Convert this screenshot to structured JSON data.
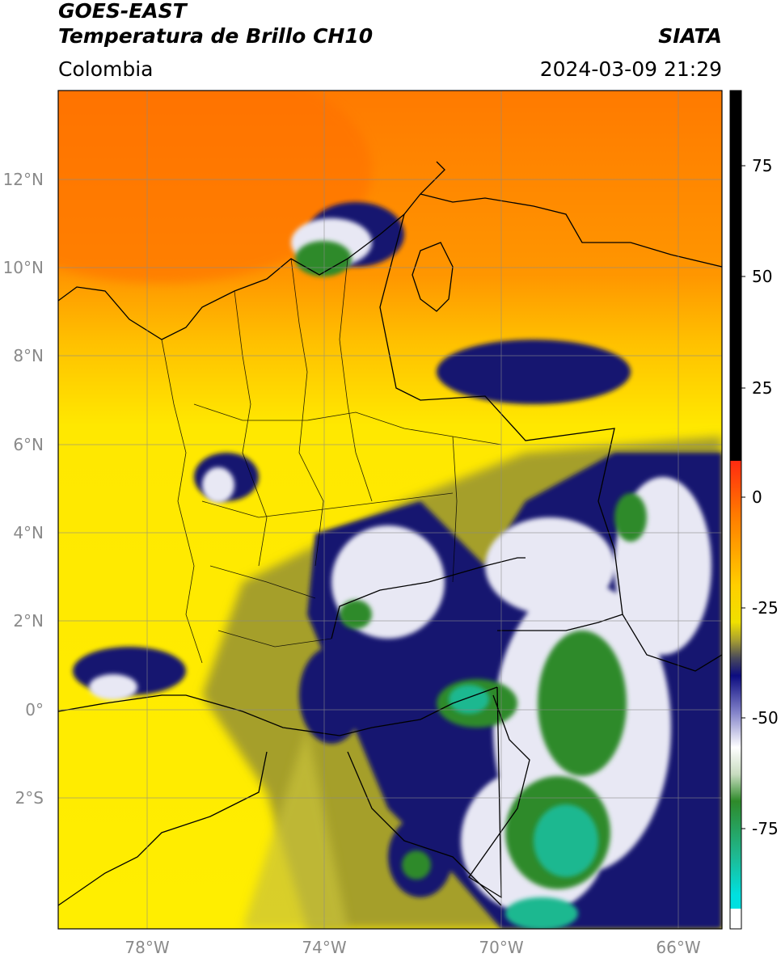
{
  "header": {
    "satellite": "GOES-EAST",
    "product": "Temperatura de Brillo CH10",
    "region": "Colombia",
    "agency": "SIATA",
    "datetime": "2024-03-09 21:29"
  },
  "map": {
    "lat_labels": [
      "12°N",
      "10°N",
      "8°N",
      "6°N",
      "4°N",
      "2°N",
      "0°",
      "2°S"
    ],
    "lon_labels": [
      "78°W",
      "74°W",
      "70°W",
      "66°W"
    ],
    "gridlines": true
  },
  "colorbar": {
    "tick_labels": [
      "75",
      "50",
      "25",
      "0",
      "-25",
      "-50",
      "-75"
    ],
    "colors": {
      "warm_top": "#000000",
      "red": "#e8231c",
      "orange": "#ff8c00",
      "yellow": "#ffee00",
      "olive": "#9a9428",
      "navy": "#10126e",
      "white": "#ffffff",
      "green": "#2e8a2a",
      "teal": "#1cc5a0",
      "cyan": "#00e0e0"
    }
  }
}
